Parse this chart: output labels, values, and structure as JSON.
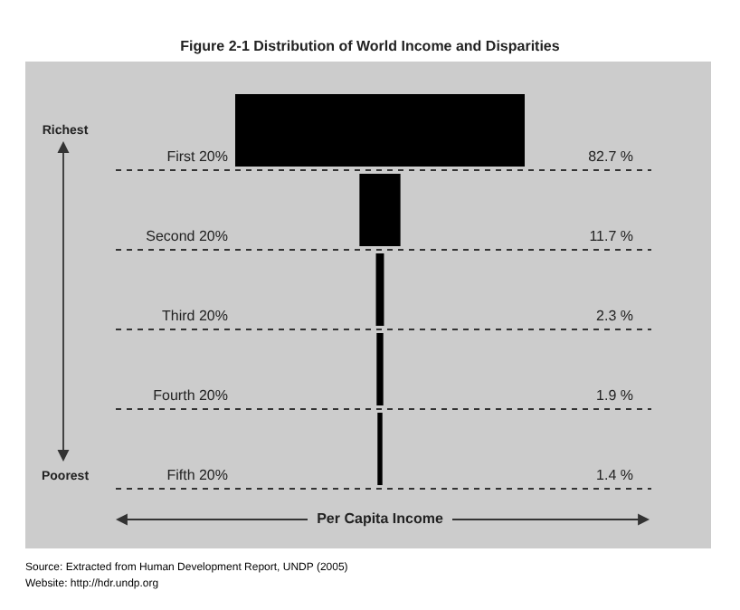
{
  "chart_data": {
    "type": "other",
    "title": "Figure 2-1  Distribution of World Income and Disparities",
    "xlabel": "Per Capita Income",
    "categories": [
      "First 20%",
      "Second 20%",
      "Third 20%",
      "Fourth 20%",
      "Fifth 20%"
    ],
    "values": [
      82.7,
      11.7,
      2.3,
      1.9,
      1.4
    ],
    "value_labels": [
      "82.7 %",
      "11.7 %",
      "2.3 %",
      "1.9 %",
      "1.4 %"
    ],
    "color": "#000000",
    "annotations": [
      "Richest",
      "Poorest",
      "Source: Extracted from Human Development Report, UNDP (2005)",
      "Website: http://hdr.undp.org"
    ]
  }
}
